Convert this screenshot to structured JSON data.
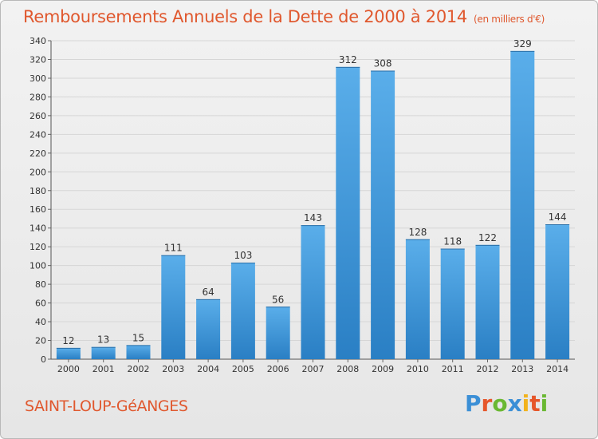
{
  "chart_data": {
    "type": "bar",
    "title": "Remboursements Annuels de la Dette de 2000 à 2014",
    "subtitle": "(en milliers d'€)",
    "categories": [
      "2000",
      "2001",
      "2002",
      "2003",
      "2004",
      "2005",
      "2006",
      "2007",
      "2008",
      "2009",
      "2010",
      "2011",
      "2012",
      "2013",
      "2014"
    ],
    "values": [
      12,
      13,
      15,
      111,
      64,
      103,
      56,
      143,
      312,
      308,
      128,
      118,
      122,
      329,
      144
    ],
    "ylim": [
      0,
      340
    ],
    "yticks": [
      0,
      20,
      40,
      60,
      80,
      100,
      120,
      140,
      160,
      180,
      200,
      220,
      240,
      260,
      280,
      300,
      320,
      340
    ],
    "grid": true,
    "xlabel": "",
    "ylabel": ""
  },
  "place_name": "SAINT-LOUP-GéANGES",
  "logo": {
    "letters": [
      "P",
      "r",
      "o",
      "x",
      "i",
      "t",
      "i"
    ],
    "colors": [
      "#3b8fd6",
      "#e6562a",
      "#6ab832",
      "#3b8fd6",
      "#f2b21c",
      "#e6562a",
      "#6ab832"
    ]
  },
  "colors": {
    "bar_light": "#5aaeea",
    "bar_dark": "#2a7fc4",
    "accent": "#e0582e",
    "grid": "#d6d6d6"
  }
}
